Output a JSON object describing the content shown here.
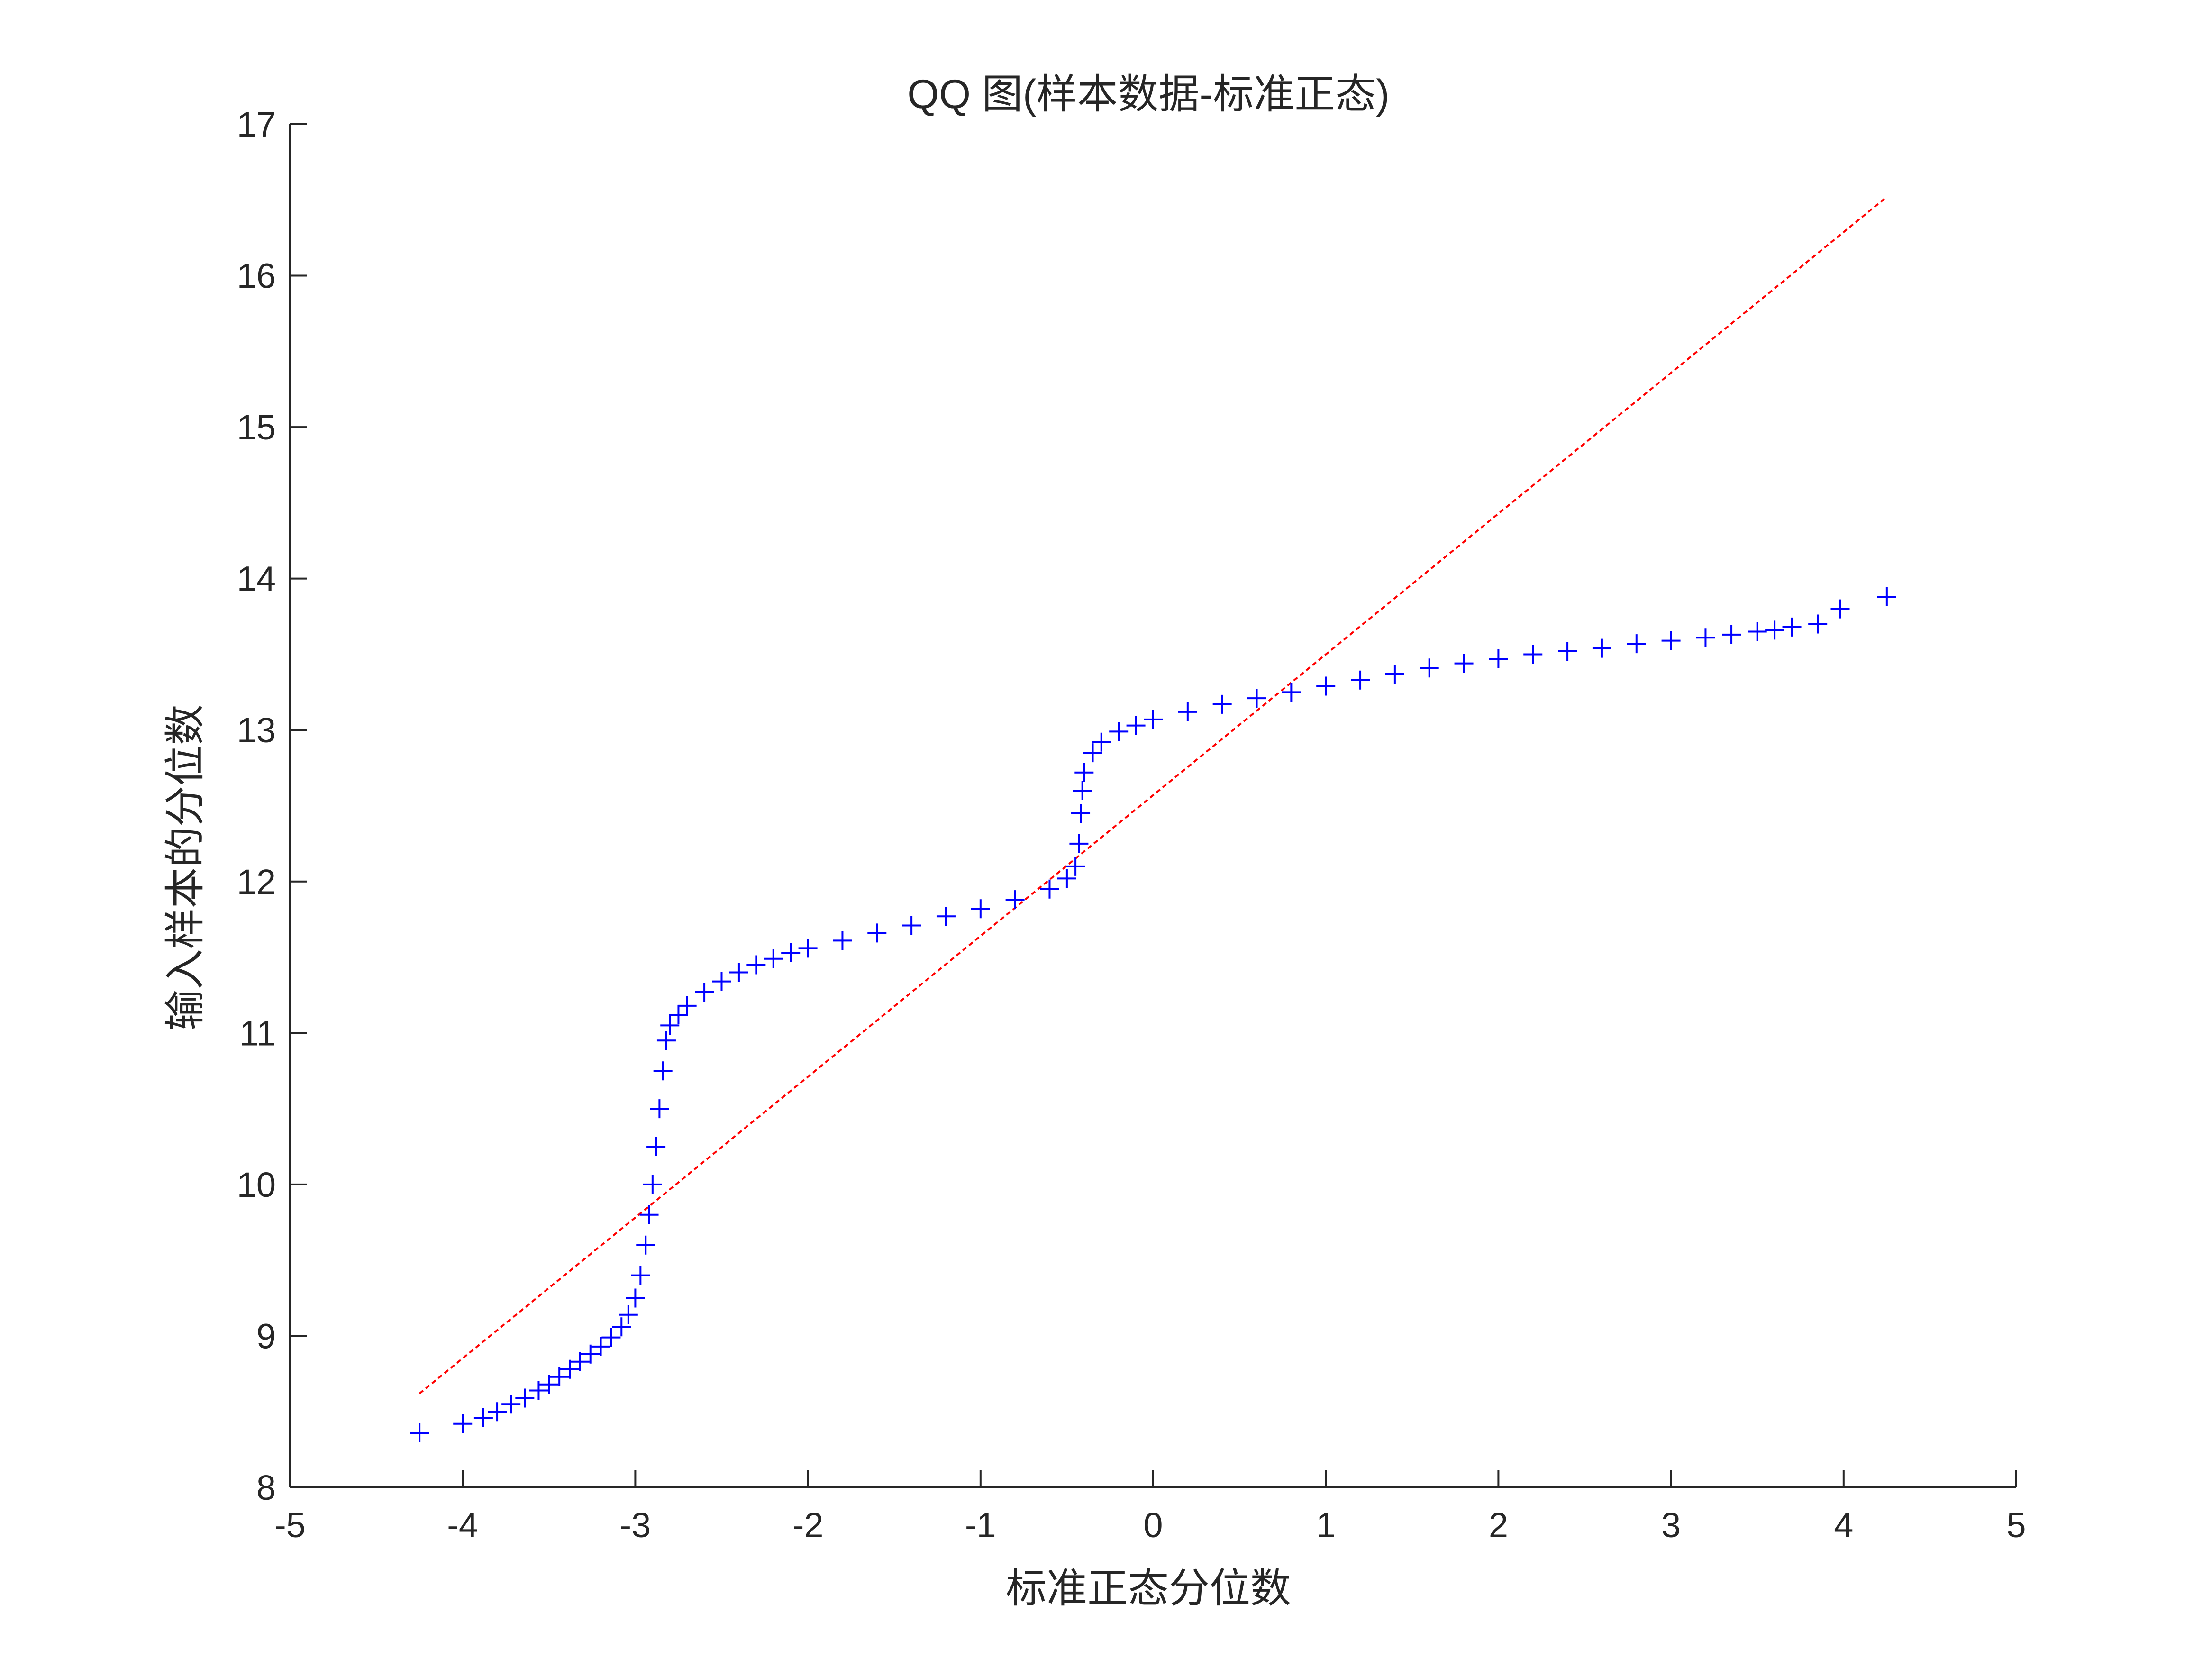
{
  "chart_data": {
    "type": "scatter",
    "title": "QQ 图(样本数据-标准正态)",
    "xlabel": "标准正态分位数",
    "ylabel": "输入样本的分位数",
    "xlim": [
      -5,
      5
    ],
    "ylim": [
      8,
      17
    ],
    "xticks": [
      "-5",
      "-4",
      "-3",
      "-2",
      "-1",
      "0",
      "1",
      "2",
      "3",
      "4",
      "5"
    ],
    "yticks": [
      "8",
      "9",
      "10",
      "11",
      "12",
      "13",
      "14",
      "15",
      "16",
      "17"
    ],
    "grid": false,
    "marker": "+",
    "colors": {
      "points": "#0000ff",
      "reference_line": "#ff0000",
      "axis": "#262626"
    },
    "reference_line": {
      "style": "dashed",
      "x": [
        -4.25,
        4.25
      ],
      "y": [
        8.62,
        16.52
      ]
    },
    "series": [
      {
        "points": [
          [
            -4.25,
            8.36
          ],
          [
            -4.0,
            8.42
          ],
          [
            -3.88,
            8.46
          ],
          [
            -3.8,
            8.5
          ],
          [
            -3.72,
            8.55
          ],
          [
            -3.64,
            8.59
          ],
          [
            -3.56,
            8.64
          ],
          [
            -3.5,
            8.68
          ],
          [
            -3.44,
            8.73
          ],
          [
            -3.38,
            8.78
          ],
          [
            -3.32,
            8.83
          ],
          [
            -3.26,
            8.88
          ],
          [
            -3.2,
            8.93
          ],
          [
            -3.14,
            8.99
          ],
          [
            -3.08,
            9.06
          ],
          [
            -3.04,
            9.14
          ],
          [
            -3.0,
            9.25
          ],
          [
            -2.97,
            9.4
          ],
          [
            -2.94,
            9.6
          ],
          [
            -2.92,
            9.8
          ],
          [
            -2.9,
            10.0
          ],
          [
            -2.88,
            10.25
          ],
          [
            -2.86,
            10.5
          ],
          [
            -2.84,
            10.75
          ],
          [
            -2.82,
            10.95
          ],
          [
            -2.8,
            11.05
          ],
          [
            -2.75,
            11.12
          ],
          [
            -2.7,
            11.18
          ],
          [
            -2.6,
            11.27
          ],
          [
            -2.5,
            11.34
          ],
          [
            -2.4,
            11.4
          ],
          [
            -2.3,
            11.45
          ],
          [
            -2.2,
            11.49
          ],
          [
            -2.1,
            11.53
          ],
          [
            -2.0,
            11.56
          ],
          [
            -1.8,
            11.61
          ],
          [
            -1.6,
            11.66
          ],
          [
            -1.4,
            11.71
          ],
          [
            -1.2,
            11.77
          ],
          [
            -1.0,
            11.82
          ],
          [
            -0.8,
            11.88
          ],
          [
            -0.6,
            11.95
          ],
          [
            -0.5,
            12.02
          ],
          [
            -0.45,
            12.1
          ],
          [
            -0.43,
            12.25
          ],
          [
            -0.42,
            12.45
          ],
          [
            -0.41,
            12.6
          ],
          [
            -0.4,
            12.72
          ],
          [
            -0.35,
            12.85
          ],
          [
            -0.3,
            12.92
          ],
          [
            -0.2,
            12.99
          ],
          [
            -0.1,
            13.03
          ],
          [
            0.0,
            13.07
          ],
          [
            0.2,
            13.12
          ],
          [
            0.4,
            13.17
          ],
          [
            0.6,
            13.21
          ],
          [
            0.8,
            13.25
          ],
          [
            1.0,
            13.29
          ],
          [
            1.2,
            13.33
          ],
          [
            1.4,
            13.37
          ],
          [
            1.6,
            13.41
          ],
          [
            1.8,
            13.44
          ],
          [
            2.0,
            13.47
          ],
          [
            2.2,
            13.5
          ],
          [
            2.4,
            13.52
          ],
          [
            2.6,
            13.54
          ],
          [
            2.8,
            13.57
          ],
          [
            3.0,
            13.59
          ],
          [
            3.2,
            13.61
          ],
          [
            3.35,
            13.63
          ],
          [
            3.5,
            13.65
          ],
          [
            3.6,
            13.66
          ],
          [
            3.7,
            13.68
          ],
          [
            3.85,
            13.7
          ],
          [
            3.98,
            13.8
          ],
          [
            4.25,
            13.88
          ]
        ]
      }
    ]
  }
}
